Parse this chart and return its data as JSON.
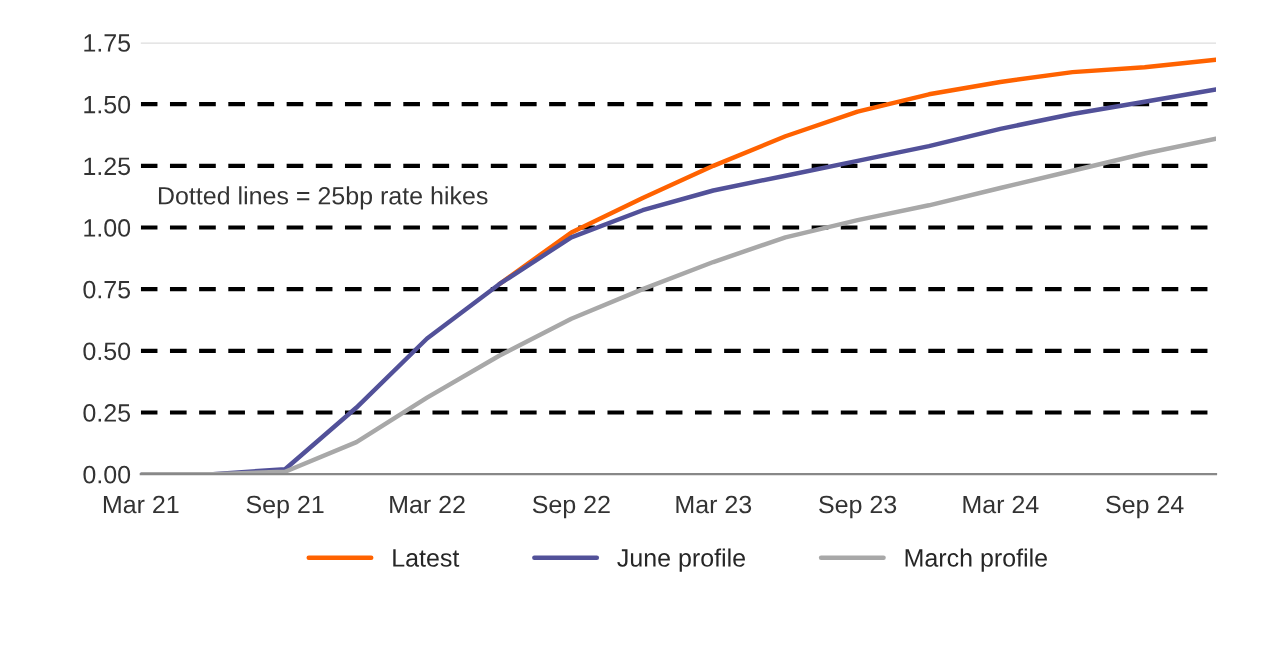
{
  "chart_data": {
    "type": "line",
    "annotations": [
      "Dotted lines = 25bp rate hikes"
    ],
    "xlim": [
      "2021-03",
      "2024-12"
    ],
    "xticks": [
      {
        "value": "2021-03",
        "label": "Mar 21"
      },
      {
        "value": "2021-09",
        "label": "Sep 21"
      },
      {
        "value": "2022-03",
        "label": "Mar 22"
      },
      {
        "value": "2022-09",
        "label": "Sep 22"
      },
      {
        "value": "2023-03",
        "label": "Mar 23"
      },
      {
        "value": "2023-09",
        "label": "Sep 23"
      },
      {
        "value": "2024-03",
        "label": "Mar 24"
      },
      {
        "value": "2024-09",
        "label": "Sep 24"
      }
    ],
    "ylim": [
      0,
      1.75
    ],
    "yticks": [
      {
        "value": 0,
        "label": "0.00"
      },
      {
        "value": 0.25,
        "label": "0.25"
      },
      {
        "value": 0.5,
        "label": "0.50"
      },
      {
        "value": 0.75,
        "label": "0.75"
      },
      {
        "value": 1,
        "label": "1.00"
      },
      {
        "value": 1.25,
        "label": "1.25"
      },
      {
        "value": 1.5,
        "label": "1.50"
      },
      {
        "value": 1.75,
        "label": "1.75"
      }
    ],
    "legend": "bottom",
    "marker": "none",
    "line_style": "solid",
    "ref_lines": [
      {
        "axis": "y",
        "value": 0.25,
        "color": "#000000",
        "line_style": "dashed"
      },
      {
        "axis": "y",
        "value": 0.5,
        "color": "#000000",
        "line_style": "dashed"
      },
      {
        "axis": "y",
        "value": 0.75,
        "color": "#000000",
        "line_style": "dashed"
      },
      {
        "axis": "y",
        "value": 1.0,
        "color": "#000000",
        "line_style": "dashed"
      },
      {
        "axis": "y",
        "value": 1.25,
        "color": "#000000",
        "line_style": "dashed"
      },
      {
        "axis": "y",
        "value": 1.5,
        "color": "#000000",
        "line_style": "dashed"
      },
      {
        "axis": "y",
        "value": 1.75,
        "color": "#dddddd",
        "line_style": "solid"
      }
    ],
    "x": [
      "2021-03",
      "2021-06",
      "2021-09",
      "2021-12",
      "2022-03",
      "2022-06",
      "2022-09",
      "2022-12",
      "2023-03",
      "2023-06",
      "2023-09",
      "2023-12",
      "2024-03",
      "2024-06",
      "2024-09",
      "2024-12"
    ],
    "series": [
      {
        "name": "Latest",
        "color": "#ff6200",
        "values": [
          null,
          null,
          null,
          null,
          null,
          0.77,
          0.98,
          1.12,
          1.25,
          1.37,
          1.47,
          1.54,
          1.59,
          1.63,
          1.65,
          1.68
        ]
      },
      {
        "name": "June profile",
        "color": "#525199",
        "values": [
          0,
          0,
          0.02,
          0.27,
          0.55,
          0.77,
          0.96,
          1.07,
          1.15,
          1.21,
          1.27,
          1.33,
          1.4,
          1.46,
          1.51,
          1.56
        ]
      },
      {
        "name": "March profile",
        "color": "#a8a8a8",
        "values": [
          0,
          0,
          0.01,
          0.13,
          0.31,
          0.48,
          0.63,
          0.75,
          0.86,
          0.96,
          1.03,
          1.09,
          1.16,
          1.23,
          1.3,
          1.36
        ]
      }
    ]
  }
}
